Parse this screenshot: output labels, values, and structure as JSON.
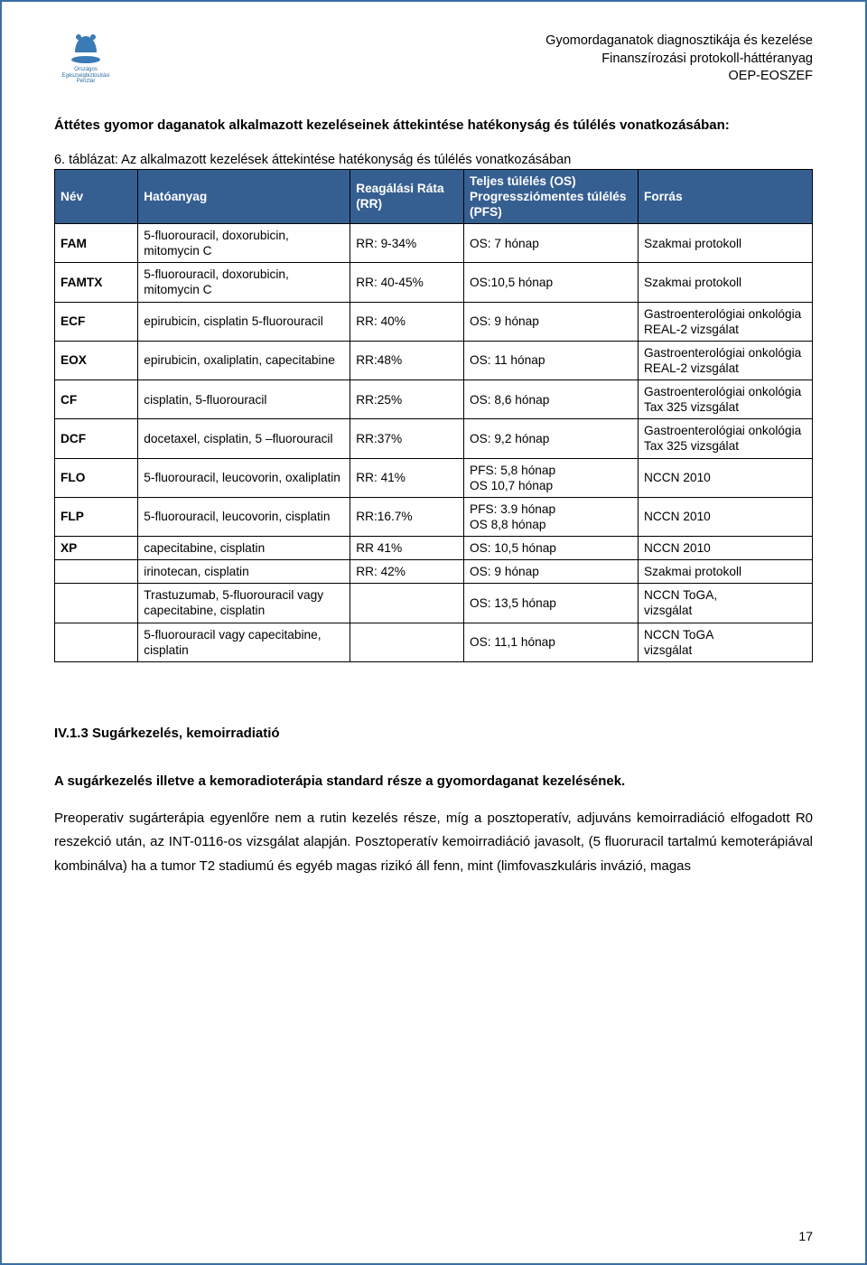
{
  "header": {
    "line1": "Gyomordaganatok diagnosztikája és kezelése",
    "line2": "Finanszírozási protokoll-háttéranyag",
    "line3": "OEP-EOSZEF",
    "logo_caption": "Országos Egészségbiztosítási Pénztár"
  },
  "intro": {
    "text_a": "Áttétes gyomor daganatok alkalmazott kezeléseinek áttekintése hatékonyság és túlélés vonatkozásában:"
  },
  "table": {
    "caption": "6. táblázat: Az alkalmazott kezelések áttekintése hatékonyság és túlélés vonatkozásában",
    "header_bg": "#365f91",
    "header_fg": "#ffffff",
    "border_color": "#000000",
    "columns": [
      "Név",
      "Hatóanyag",
      "Reagálási Ráta (RR)",
      "Teljes túlélés (OS) Progressziómentes túlélés (PFS)",
      "Forrás"
    ],
    "rows": [
      [
        "FAM",
        "5-fluorouracil, doxorubicin, mitomycin C",
        "RR: 9-34%",
        "OS: 7 hónap",
        "Szakmai protokoll"
      ],
      [
        "FAMTX",
        "5-fluorouracil, doxorubicin, mitomycin C",
        "RR: 40-45%",
        "OS:10,5 hónap",
        "Szakmai protokoll"
      ],
      [
        "ECF",
        "epirubicin, cisplatin 5-fluorouracil",
        "RR: 40%",
        "OS: 9 hónap",
        "Gastroenterológiai onkológia REAL-2 vizsgálat"
      ],
      [
        "EOX",
        "epirubicin, oxaliplatin, capecitabine",
        "RR:48%",
        "OS: 11 hónap",
        "Gastroenterológiai onkológia REAL-2 vizsgálat"
      ],
      [
        "CF",
        "cisplatin, 5-fluorouracil",
        "RR:25%",
        "OS: 8,6 hónap",
        "Gastroenterológiai onkológia Tax 325 vizsgálat"
      ],
      [
        "DCF",
        "docetaxel, cisplatin, 5 –fluorouracil",
        "RR:37%",
        "OS: 9,2 hónap",
        "Gastroenterológiai onkológia Tax 325 vizsgálat"
      ],
      [
        "FLO",
        "5-fluorouracil, leucovorin, oxaliplatin",
        "RR: 41%",
        "PFS: 5,8 hónap\nOS 10,7 hónap",
        "NCCN 2010"
      ],
      [
        "FLP",
        "5-fluorouracil, leucovorin, cisplatin",
        "RR:16.7%",
        "PFS: 3.9 hónap\nOS 8,8 hónap",
        "NCCN 2010"
      ],
      [
        "XP",
        "capecitabine, cisplatin",
        "RR 41%",
        "OS: 10,5 hónap",
        "NCCN 2010"
      ],
      [
        "",
        "irinotecan, cisplatin",
        "RR: 42%",
        "OS: 9 hónap",
        "Szakmai protokoll"
      ],
      [
        "",
        "Trastuzumab, 5-fluorouracil vagy capecitabine, cisplatin",
        "",
        "OS: 13,5 hónap",
        "NCCN ToGA,\nvizsgálat"
      ],
      [
        "",
        "5-fluorouracil vagy capecitabine, cisplatin",
        "",
        "OS: 11,1 hónap",
        "NCCN ToGA\nvizsgálat"
      ]
    ]
  },
  "section": {
    "heading": "IV.1.3 Sugárkezelés, kemoirradiatió",
    "para1_a": "A sugárkezelés illetve a kemoradioterápia standard része a gyomordaganat kezelésének.",
    "para2": "Preoperativ sugárterápia egyenlőre nem a rutin kezelés része, míg a posztoperatív, adjuváns kemoirradiáció elfogadott R0 reszekció után, az INT-0116-os vizsgálat alapján. Posztoperatív kemoirradiáció javasolt, (5 fluoruracil tartalmú kemoterápiával kombinálva) ha a tumor T2 stadiumú és egyéb magas rizikó áll fenn, mint (limfovaszkuláris invázió, magas"
  },
  "page_number": "17",
  "colors": {
    "page_border": "#3a6ea5",
    "text": "#000000",
    "logo_blue": "#2a6aa0"
  },
  "fontsizes": {
    "body": 15,
    "table": 13.7,
    "header": 14.5
  }
}
